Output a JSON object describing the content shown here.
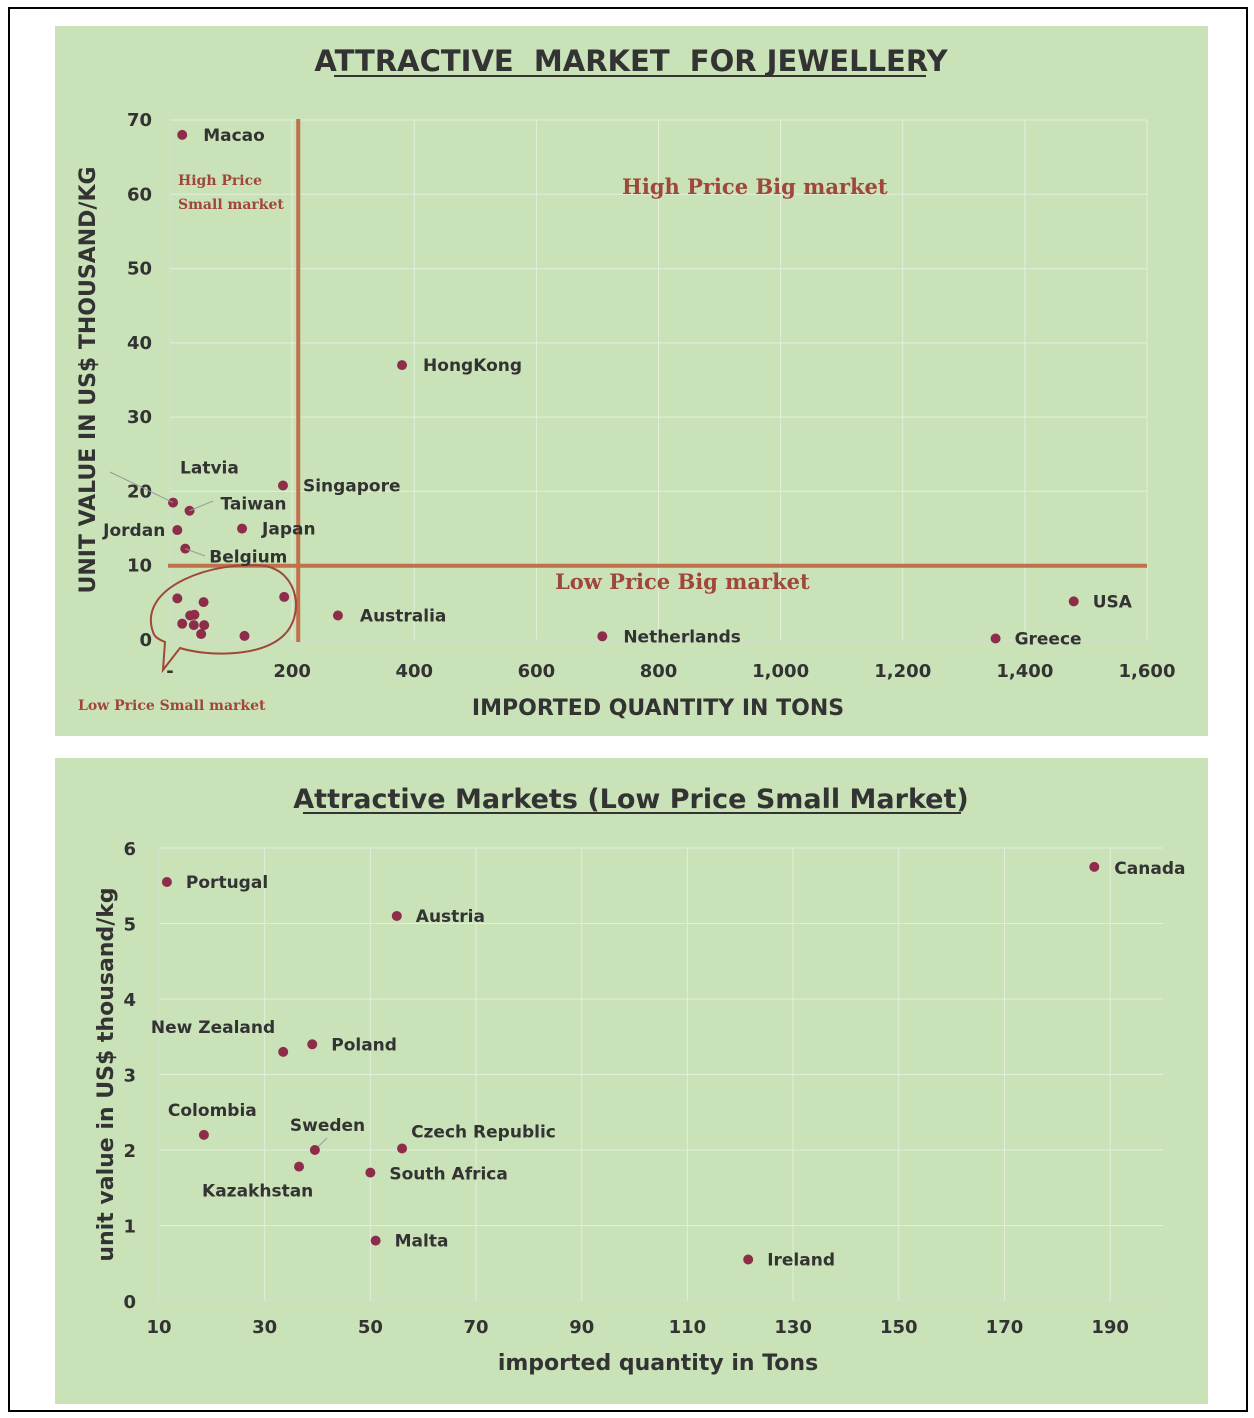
{
  "colors": {
    "panel_bg": "#c9e2b8",
    "marker": "#8e2d4a",
    "divider": "#c0714a",
    "quadrant_text": "#a0463a",
    "grid": "#e3efdb"
  },
  "chart_data": [
    {
      "type": "scatter",
      "title": "ATTRACTIVE  MARKET  FOR JEWELLERY",
      "xlabel": "IMPORTED QUANTITY IN TONS",
      "ylabel": "UNIT VALUE IN US$ THOUSAND/KG",
      "xlim": [
        0,
        1600
      ],
      "ylim": [
        0,
        70
      ],
      "x_ticks": [
        "-",
        "200",
        "400",
        "600",
        "800",
        "1,000",
        "1,200",
        "1,400",
        "1,600"
      ],
      "y_ticks": [
        "0",
        "10",
        "20",
        "30",
        "40",
        "50",
        "60",
        "70"
      ],
      "grid": true,
      "divider_lines": {
        "x": 210,
        "y": 10
      },
      "quadrant_labels": {
        "top_left": [
          "High Price",
          "Small market"
        ],
        "top_right": "High Price Big market",
        "bottom_right": "Low Price Big market",
        "bottom_left": "Low Price Small market"
      },
      "points": [
        {
          "label": "Macao",
          "x": 20,
          "y": 68
        },
        {
          "label": "HongKong",
          "x": 380,
          "y": 37
        },
        {
          "label": "Singapore",
          "x": 185,
          "y": 20.8
        },
        {
          "label": "Latvia",
          "x": 5,
          "y": 18.5
        },
        {
          "label": "Taiwan",
          "x": 32,
          "y": 17.4
        },
        {
          "label": "Jordan",
          "x": 12,
          "y": 14.8
        },
        {
          "label": "Japan",
          "x": 118,
          "y": 15
        },
        {
          "label": "Belgium",
          "x": 25,
          "y": 12.3
        },
        {
          "label": "Australia",
          "x": 275,
          "y": 3.3
        },
        {
          "label": "Netherlands",
          "x": 708,
          "y": 0.5
        },
        {
          "label": "Greece",
          "x": 1352,
          "y": 0.2
        },
        {
          "label": "USA",
          "x": 1480,
          "y": 5.2
        },
        {
          "label": "",
          "x": 12,
          "y": 5.6
        },
        {
          "label": "",
          "x": 55,
          "y": 5.1
        },
        {
          "label": "",
          "x": 187,
          "y": 5.8
        },
        {
          "label": "",
          "x": 40,
          "y": 3.4
        },
        {
          "label": "",
          "x": 33,
          "y": 3.3
        },
        {
          "label": "",
          "x": 20,
          "y": 2.2
        },
        {
          "label": "",
          "x": 39,
          "y": 2.0
        },
        {
          "label": "",
          "x": 56,
          "y": 2.0
        },
        {
          "label": "",
          "x": 51,
          "y": 0.8
        },
        {
          "label": "",
          "x": 122,
          "y": 0.55
        }
      ]
    },
    {
      "type": "scatter",
      "title": "Attractive Markets  (Low Price Small Market)",
      "xlabel": "imported quantity in Tons",
      "ylabel": "unit value in US$ thousand/kg",
      "xlim": [
        10,
        200
      ],
      "ylim": [
        0,
        6
      ],
      "x_ticks": [
        "10",
        "30",
        "50",
        "70",
        "90",
        "110",
        "130",
        "150",
        "170",
        "190"
      ],
      "y_ticks": [
        "0",
        "1",
        "2",
        "3",
        "4",
        "5",
        "6"
      ],
      "grid": true,
      "points": [
        {
          "label": "Portugal",
          "x": 11.5,
          "y": 5.55
        },
        {
          "label": "Austria",
          "x": 55,
          "y": 5.1
        },
        {
          "label": "Canada",
          "x": 187,
          "y": 5.75
        },
        {
          "label": "New Zealand",
          "x": 33.5,
          "y": 3.3
        },
        {
          "label": "Poland",
          "x": 39,
          "y": 3.4
        },
        {
          "label": "Colombia",
          "x": 18.5,
          "y": 2.2
        },
        {
          "label": "Sweden",
          "x": 39.5,
          "y": 2.0
        },
        {
          "label": "Czech Republic",
          "x": 56,
          "y": 2.02
        },
        {
          "label": "Kazakhstan",
          "x": 36.5,
          "y": 1.78
        },
        {
          "label": "South Africa",
          "x": 50,
          "y": 1.7
        },
        {
          "label": "Malta",
          "x": 51,
          "y": 0.8
        },
        {
          "label": "Ireland",
          "x": 121.5,
          "y": 0.55
        }
      ]
    }
  ]
}
